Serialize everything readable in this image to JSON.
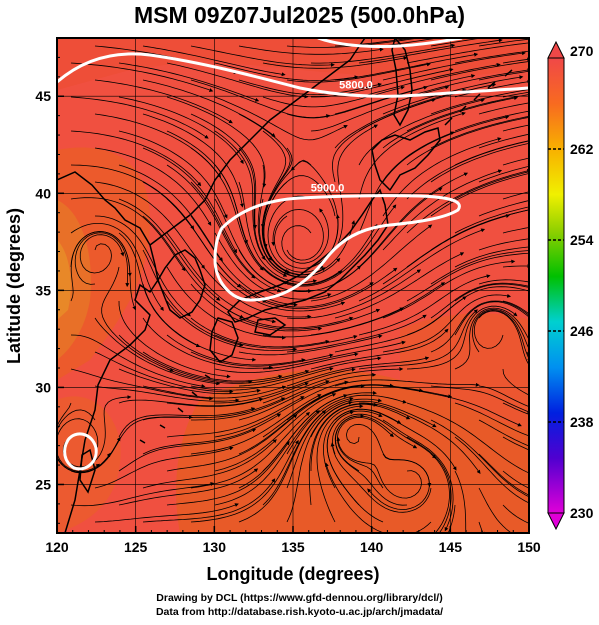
{
  "title": "MSM 09Z07Jul2025 (500.0hPa)",
  "x_axis": {
    "label": "Longitude (degrees)",
    "range": [
      120,
      150
    ],
    "ticks": [
      "120",
      "125",
      "130",
      "135",
      "140",
      "145",
      "150"
    ]
  },
  "y_axis": {
    "label": "Latitude  (degrees)",
    "range": [
      22.5,
      48
    ],
    "ticks": [
      "25",
      "30",
      "35",
      "40",
      "45"
    ]
  },
  "colorbar": {
    "min": "230",
    "max": "270",
    "labels": [
      "270",
      "262",
      "254",
      "246",
      "238",
      "230"
    ]
  },
  "contours": [
    {
      "label": "5800.0",
      "lon": 139,
      "lat": 45.4
    },
    {
      "label": "5900.0",
      "lon": 137.2,
      "lat": 40.1
    }
  ],
  "credits": {
    "drawing": "Drawing by DCL (https://www.gfd-dennou.org/library/dcl/)",
    "data": "Data from http://database.rish.kyoto-u.ac.jp/arch/jmadata/"
  }
}
